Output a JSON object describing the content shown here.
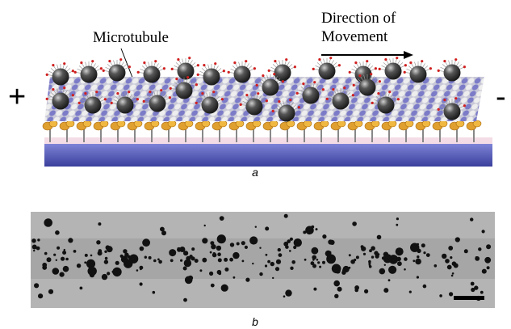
{
  "figure": {
    "panel_a": {
      "microtubule_label": "Microtubule",
      "direction_label": [
        "Direction of",
        "Movement"
      ],
      "plus_end": "+",
      "minus_end": "-",
      "caption": "a"
    },
    "panel_b": {
      "caption": "b"
    }
  }
}
